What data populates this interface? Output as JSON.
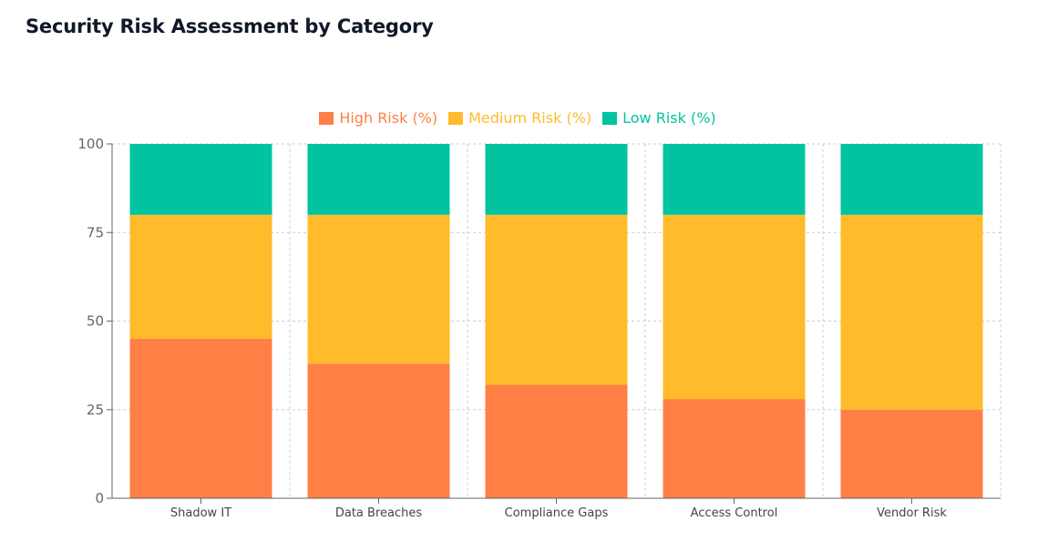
{
  "chart_data": {
    "type": "bar",
    "stacked": true,
    "title": "Security Risk Assessment by Category",
    "categories": [
      "Shadow IT",
      "Data Breaches",
      "Compliance Gaps",
      "Access Control",
      "Vendor Risk"
    ],
    "series": [
      {
        "name": "High Risk (%)",
        "color": "#FF7F45",
        "values": [
          45,
          38,
          32,
          28,
          25
        ]
      },
      {
        "name": "Medium Risk (%)",
        "color": "#FFBB2A",
        "values": [
          35,
          42,
          48,
          52,
          55
        ]
      },
      {
        "name": "Low Risk (%)",
        "color": "#00C49F",
        "values": [
          20,
          20,
          20,
          20,
          20
        ]
      }
    ],
    "ylim": [
      0,
      100
    ],
    "yticks": [
      "0",
      "25",
      "50",
      "75",
      "100"
    ],
    "grid": true,
    "legend": "top-center",
    "xlabel": "",
    "ylabel": ""
  }
}
